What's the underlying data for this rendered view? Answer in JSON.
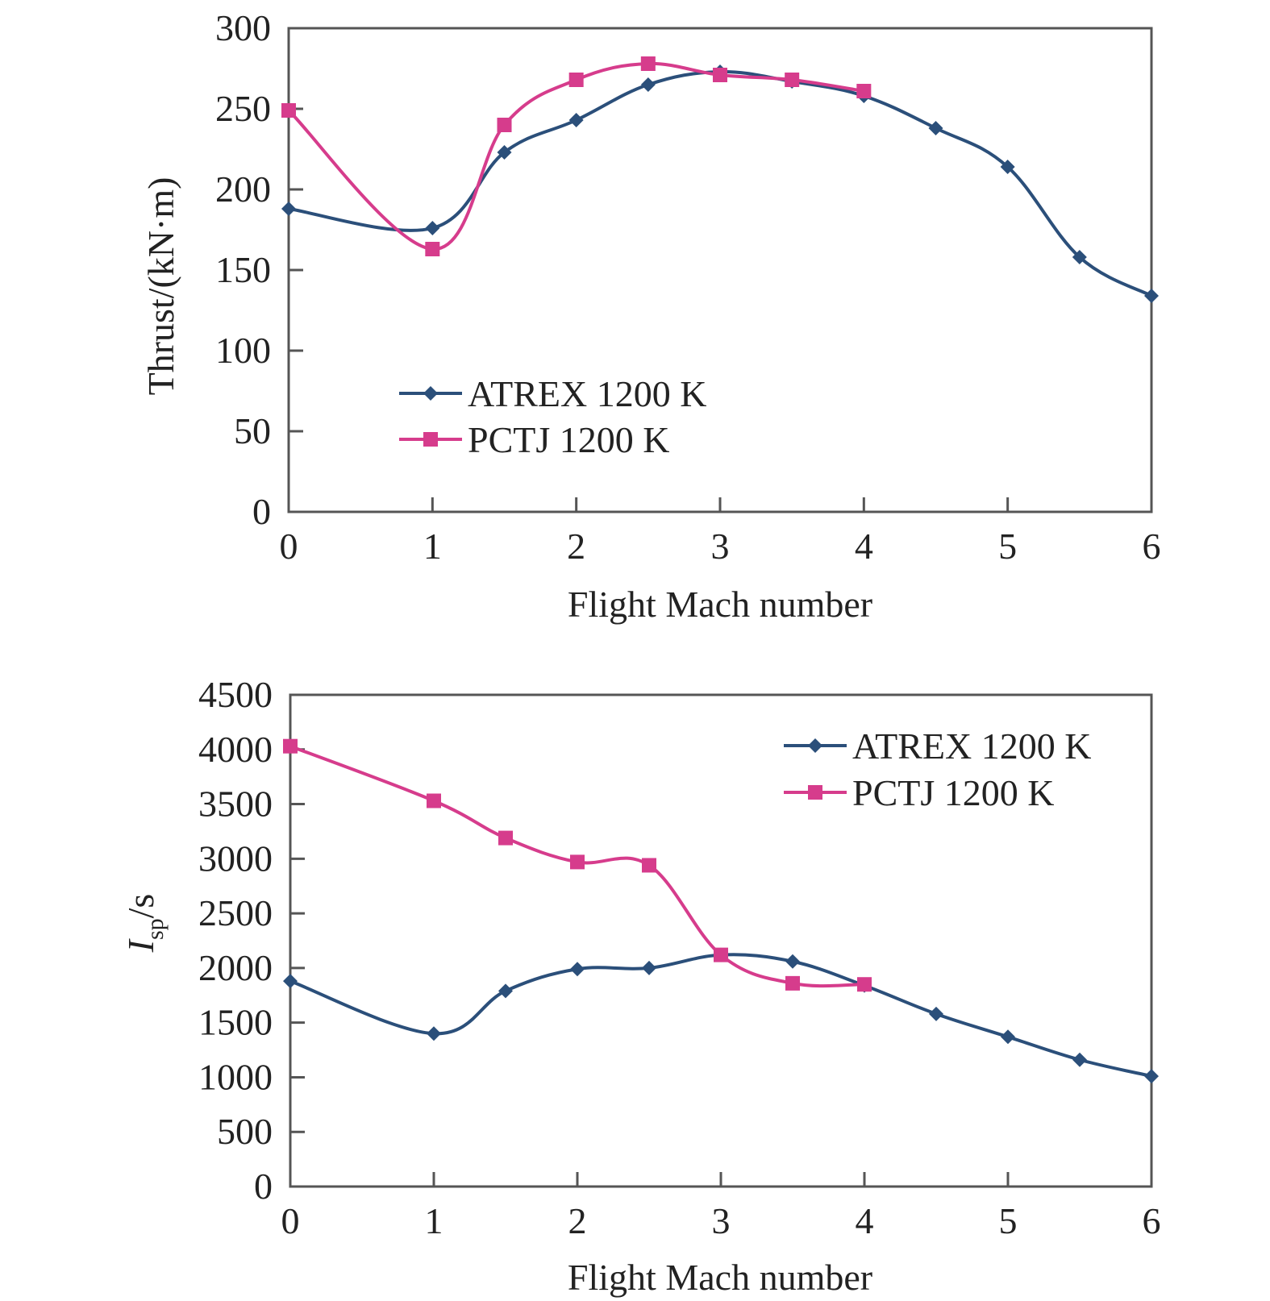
{
  "chart_data": [
    {
      "type": "line",
      "title": "",
      "xlabel": "Flight Mach number",
      "ylabel": "Thrust/(kN·m)",
      "xlim": [
        0,
        6
      ],
      "ylim": [
        0,
        300
      ],
      "xticks": [
        0,
        1,
        2,
        3,
        4,
        5,
        6
      ],
      "yticks": [
        0,
        50,
        100,
        150,
        200,
        250,
        300
      ],
      "legend_position": "lower-left",
      "series": [
        {
          "name": "ATREX 1200 K",
          "color": "#2b4f7a",
          "marker": "diamond",
          "x": [
            0,
            1,
            1.5,
            2,
            2.5,
            3,
            3.5,
            4,
            4.5,
            5,
            5.5,
            6
          ],
          "y": [
            188,
            176,
            223,
            243,
            265,
            273,
            267,
            258,
            238,
            214,
            158,
            134
          ]
        },
        {
          "name": "PCTJ 1200 K",
          "color": "#d63c8c",
          "marker": "square",
          "x": [
            0,
            1,
            1.5,
            2,
            2.5,
            3,
            3.5,
            4
          ],
          "y": [
            249,
            163,
            240,
            268,
            278,
            271,
            268,
            261
          ]
        }
      ]
    },
    {
      "type": "line",
      "title": "",
      "xlabel": "Flight Mach number",
      "ylabel_main": "I",
      "ylabel_sub": "sp",
      "ylabel_unit": "/s",
      "xlim": [
        0,
        6
      ],
      "ylim": [
        0,
        4500
      ],
      "xticks": [
        0,
        1,
        2,
        3,
        4,
        5,
        6
      ],
      "yticks": [
        0,
        500,
        1000,
        1500,
        2000,
        2500,
        3000,
        3500,
        4000,
        4500
      ],
      "legend_position": "top-right",
      "series": [
        {
          "name": "ATREX 1200 K",
          "color": "#2b4f7a",
          "marker": "diamond",
          "x": [
            0,
            1,
            1.5,
            2,
            2.5,
            3,
            3.5,
            4,
            4.5,
            5,
            5.5,
            6
          ],
          "y": [
            1880,
            1400,
            1790,
            1990,
            2000,
            2120,
            2060,
            1840,
            1580,
            1370,
            1160,
            1010
          ]
        },
        {
          "name": "PCTJ 1200 K",
          "color": "#d63c8c",
          "marker": "square",
          "x": [
            0,
            1,
            1.5,
            2,
            2.5,
            3,
            3.5,
            4
          ],
          "y": [
            4030,
            3530,
            3190,
            2970,
            2940,
            2120,
            1860,
            1850
          ]
        }
      ]
    }
  ]
}
